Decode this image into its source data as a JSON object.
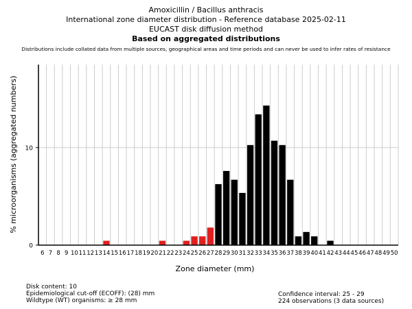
{
  "titles": {
    "line1": "Amoxicillin / Bacillus anthracis",
    "line2": "International zone diameter distribution - Reference database 2025-02-11",
    "line3": "EUCAST disk diffusion method",
    "line4": "Based on aggregated distributions",
    "note": "Distributions include collated data from multiple sources, geographical areas and time periods and can never be used to infer rates of resistance"
  },
  "footer": {
    "disk_content": "Disk content: 10",
    "ecoff": "Epidemiological cut-off (ECOFF): (28) mm",
    "wildtype": "Wildtype (WT) organisms: ≥ 28 mm",
    "confidence": "Confidence interval: 25 - 29",
    "observations": "224 observations (3 data sources)"
  },
  "colors": {
    "non_wildtype": "#e02020",
    "wildtype": "#000000",
    "grid": "#cccccc"
  },
  "chart_data": {
    "type": "bar",
    "xlabel": "Zone diameter (mm)",
    "ylabel": "% microorganisms (aggregated numbers)",
    "categories": [
      "6",
      "7",
      "8",
      "9",
      "10",
      "11",
      "12",
      "13",
      "14",
      "15",
      "16",
      "17",
      "18",
      "19",
      "20",
      "21",
      "22",
      "23",
      "24",
      "25",
      "26",
      "27",
      "28",
      "29",
      "30",
      "31",
      "32",
      "33",
      "34",
      "35",
      "36",
      "37",
      "38",
      "39",
      "40",
      "41",
      "42",
      "43",
      "44",
      "45",
      "46",
      "47",
      "48",
      "49",
      "50"
    ],
    "values": [
      0,
      0,
      0,
      0,
      0,
      0,
      0,
      0,
      0.45,
      0,
      0,
      0,
      0,
      0,
      0,
      0.45,
      0,
      0,
      0.45,
      0.9,
      0.9,
      1.8,
      6.25,
      7.6,
      6.7,
      5.35,
      10.25,
      13.4,
      14.3,
      10.7,
      10.25,
      6.7,
      0.9,
      1.35,
      0.9,
      0,
      0.45,
      0,
      0,
      0,
      0,
      0,
      0,
      0,
      0
    ],
    "ecoff": 28,
    "ylim": [
      0,
      18.5
    ],
    "yticks": [
      0,
      10
    ],
    "grid": true
  }
}
